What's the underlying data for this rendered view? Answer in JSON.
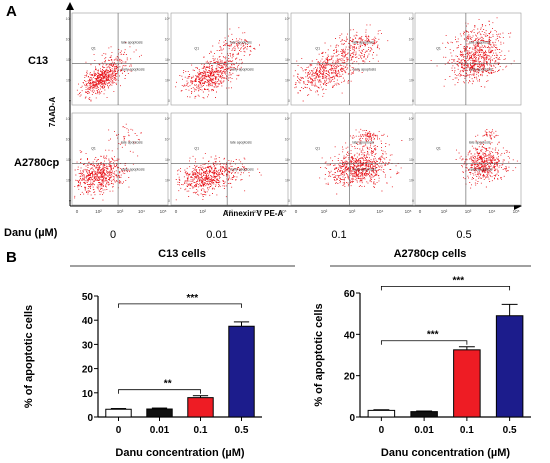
{
  "panel_a": {
    "label": "A",
    "row_labels": [
      "C13",
      "A2780cp"
    ],
    "y_axis_label": "7AAD-A",
    "x_axis_label": "Annexin V PE-A",
    "dose_label": "Danu  (µM)",
    "doses": [
      "0",
      "0.01",
      "0.1",
      "0.5"
    ],
    "quadrant_labels": {
      "q1": "Q1",
      "late": "late apoptosis",
      "early": "early apoptosis"
    },
    "tick_labels": [
      "0",
      "10²",
      "10³",
      "10⁴",
      "10⁵"
    ],
    "dot_color": "#e8141b"
  },
  "panel_b": {
    "label": "B",
    "bar_colors": [
      "#ffffff",
      "#111111",
      "#ee1c24",
      "#1c1c8c"
    ],
    "charts": [
      {
        "title": "C13 cells",
        "type": "bar",
        "categories": [
          "0",
          "0.01",
          "0.1",
          "0.5"
        ],
        "values": [
          3.2,
          3.3,
          8.0,
          37.5
        ],
        "errors": [
          0.3,
          0.4,
          0.8,
          1.8
        ],
        "ylabel": "% of apoptotic cells",
        "xlabel": "Danu concentration (µM)",
        "ylim": [
          0,
          50
        ],
        "yticks": [
          "0",
          "10",
          "20",
          "30",
          "40",
          "50"
        ],
        "significance": [
          {
            "from": 0,
            "to": 2,
            "label": "**"
          },
          {
            "from": 0,
            "to": 3,
            "label": "***"
          }
        ]
      },
      {
        "title": "A2780cp cells",
        "type": "bar",
        "categories": [
          "0",
          "0.01",
          "0.1",
          "0.5"
        ],
        "values": [
          3.2,
          2.6,
          32.5,
          49.0
        ],
        "errors": [
          0.3,
          0.3,
          1.5,
          5.5
        ],
        "ylabel": "% of  apoptotic cells",
        "xlabel": "Danu concentration (µM)",
        "ylim": [
          0,
          60
        ],
        "yticks": [
          "0",
          "20",
          "40",
          "60"
        ],
        "significance": [
          {
            "from": 0,
            "to": 2,
            "label": "***"
          },
          {
            "from": 0,
            "to": 3,
            "label": "***"
          }
        ]
      }
    ]
  }
}
